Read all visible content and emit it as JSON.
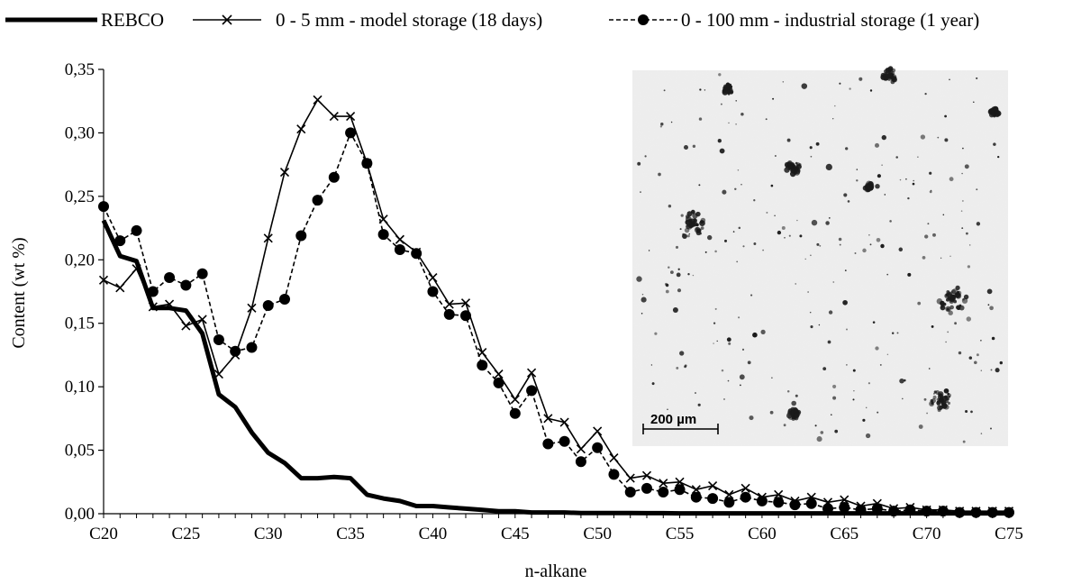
{
  "chart_data": {
    "type": "line",
    "xlabel": "n-alkane",
    "ylabel": "Content (wt %)",
    "xlim": [
      20,
      75
    ],
    "ylim": [
      0,
      0.35
    ],
    "yticks": [
      "0,00",
      "0,05",
      "0,10",
      "0,15",
      "0,20",
      "0,25",
      "0,30",
      "0,35"
    ],
    "xticks": [
      "C20",
      "C25",
      "C30",
      "C35",
      "C40",
      "C45",
      "C50",
      "C55",
      "C60",
      "C65",
      "C70",
      "C75"
    ],
    "legend_position": "top",
    "grid": false,
    "series": [
      {
        "name": "REBCO",
        "style": "thick-solid",
        "x": [
          20,
          21,
          22,
          23,
          24,
          25,
          26,
          27,
          28,
          29,
          30,
          31,
          32,
          33,
          34,
          35,
          36,
          37,
          38,
          39,
          40,
          41,
          42,
          43,
          44,
          45,
          46,
          47,
          48,
          49,
          50,
          51,
          52,
          53,
          54,
          55,
          56,
          57,
          58,
          59,
          60,
          61,
          62,
          63,
          64,
          65,
          66,
          67,
          68,
          69,
          70,
          71,
          72,
          73,
          74,
          75
        ],
        "y": [
          0.231,
          0.203,
          0.199,
          0.162,
          0.162,
          0.16,
          0.142,
          0.094,
          0.084,
          0.064,
          0.048,
          0.04,
          0.028,
          0.028,
          0.029,
          0.028,
          0.015,
          0.012,
          0.01,
          0.006,
          0.006,
          0.005,
          0.004,
          0.003,
          0.002,
          0.002,
          0.001,
          0.001,
          0.001,
          0.0005,
          0.0005,
          0.0005,
          0.0005,
          0.0004,
          0.0004,
          0.0003,
          0.0003,
          0.0003,
          0.0003,
          0.0003,
          0.0003,
          0.0003,
          0.0003,
          0.0003,
          0.0003,
          0.0003,
          0.0003,
          0.0003,
          0.0003,
          0.0003,
          0.0003,
          0.0003,
          0.0003,
          0.0003,
          0.0003,
          0.0003
        ]
      },
      {
        "name": "0 - 5 mm - model storage (18 days)",
        "style": "solid-x",
        "x": [
          20,
          21,
          22,
          23,
          24,
          25,
          26,
          27,
          28,
          29,
          30,
          31,
          32,
          33,
          34,
          35,
          36,
          37,
          38,
          39,
          40,
          41,
          42,
          43,
          44,
          45,
          46,
          47,
          48,
          49,
          50,
          51,
          52,
          53,
          54,
          55,
          56,
          57,
          58,
          59,
          60,
          61,
          62,
          63,
          64,
          65,
          66,
          67,
          68,
          69,
          70,
          71,
          72,
          73,
          74,
          75
        ],
        "y": [
          0.184,
          0.178,
          0.193,
          0.163,
          0.165,
          0.148,
          0.153,
          0.11,
          0.125,
          0.162,
          0.217,
          0.269,
          0.303,
          0.326,
          0.313,
          0.313,
          0.276,
          0.232,
          0.216,
          0.206,
          0.186,
          0.165,
          0.166,
          0.127,
          0.11,
          0.09,
          0.111,
          0.075,
          0.072,
          0.051,
          0.065,
          0.044,
          0.028,
          0.03,
          0.024,
          0.025,
          0.019,
          0.022,
          0.015,
          0.02,
          0.013,
          0.015,
          0.01,
          0.013,
          0.009,
          0.011,
          0.006,
          0.008,
          0.004,
          0.005,
          0.003,
          0.003,
          0.002,
          0.002,
          0.002,
          0.002
        ]
      },
      {
        "name": "0 - 100 mm - industrial storage (1 year)",
        "style": "dashed-circle",
        "x": [
          20,
          21,
          22,
          23,
          24,
          25,
          26,
          27,
          28,
          29,
          30,
          31,
          32,
          33,
          34,
          35,
          36,
          37,
          38,
          39,
          40,
          41,
          42,
          43,
          44,
          45,
          46,
          47,
          48,
          49,
          50,
          51,
          52,
          53,
          54,
          55,
          56,
          57,
          58,
          59,
          60,
          61,
          62,
          63,
          64,
          65,
          66,
          67,
          68,
          69,
          70,
          71,
          72,
          73,
          74,
          75
        ],
        "y": [
          0.242,
          0.215,
          0.223,
          0.175,
          0.186,
          0.18,
          0.189,
          0.137,
          0.128,
          0.131,
          0.164,
          0.169,
          0.219,
          0.247,
          0.265,
          0.3,
          0.276,
          0.22,
          0.208,
          0.205,
          0.175,
          0.157,
          0.156,
          0.117,
          0.103,
          0.079,
          0.097,
          0.055,
          0.057,
          0.041,
          0.052,
          0.031,
          0.017,
          0.02,
          0.017,
          0.019,
          0.013,
          0.012,
          0.009,
          0.013,
          0.01,
          0.009,
          0.007,
          0.008,
          0.004,
          0.005,
          0.003,
          0.004,
          0.002,
          0.003,
          0.002,
          0.002,
          0.001,
          0.001,
          0.001,
          0.001
        ]
      }
    ]
  },
  "inset": {
    "scale_bar_label": "200 µm"
  }
}
